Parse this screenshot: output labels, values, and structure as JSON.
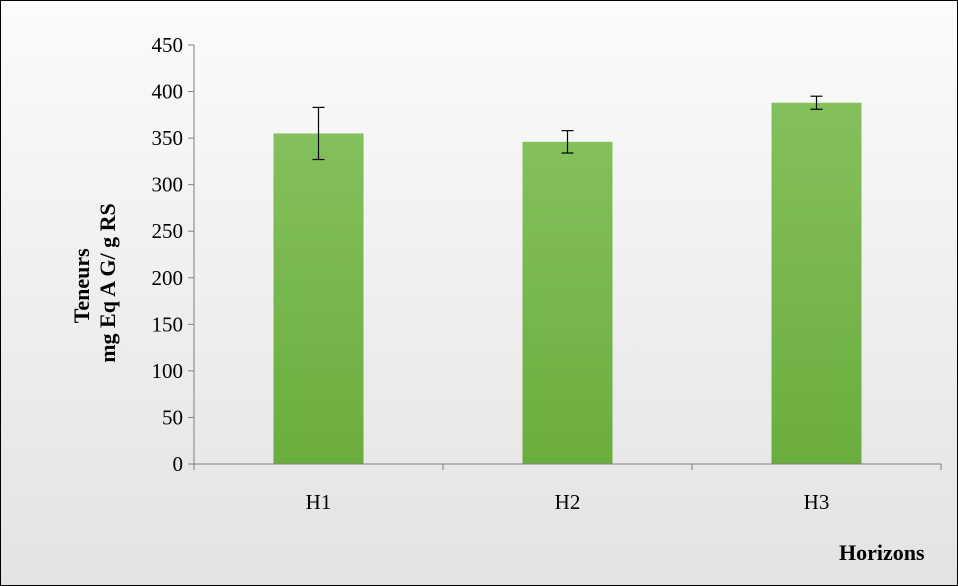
{
  "chart_data": {
    "type": "bar",
    "categories": [
      "H1",
      "H2",
      "H3"
    ],
    "values": [
      355,
      346,
      388
    ],
    "error": [
      28,
      12,
      7
    ],
    "ylim": [
      0,
      450
    ],
    "yticks": [
      0,
      50,
      100,
      150,
      200,
      250,
      300,
      350,
      400,
      450
    ],
    "ylabel_lines": [
      "Teneurs",
      "mg Eq A G/ g RS"
    ],
    "xlabel": "Horizons",
    "bar_color": "#6aad3d",
    "bar_color_light": "#84c05b",
    "grid": false,
    "legend": "none"
  }
}
